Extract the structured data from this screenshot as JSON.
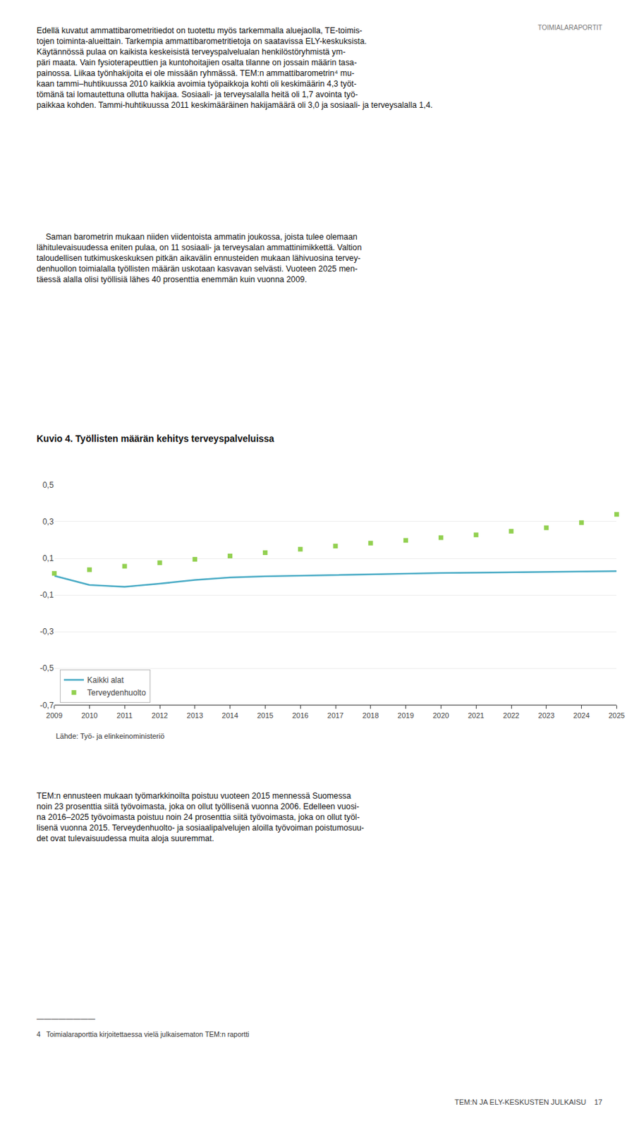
{
  "chart_data": {
    "type": "line",
    "title": "Kuvio 4. Työllisten määrän kehitys terveyspalveluissa",
    "x": [
      2009,
      2010,
      2011,
      2012,
      2013,
      2014,
      2015,
      2016,
      2017,
      2018,
      2019,
      2020,
      2021,
      2022,
      2023,
      2024,
      2025
    ],
    "xlim": [
      2009,
      2025
    ],
    "xticks": [
      2009,
      2010,
      2011,
      2012,
      2013,
      2014,
      2015,
      2016,
      2017,
      2018,
      2019,
      2020,
      2021,
      2022,
      2023,
      2024,
      2025
    ],
    "ylim": [
      -0.7,
      0.5
    ],
    "yticks": [
      {
        "value": -0.7,
        "label": "-0,7"
      },
      {
        "value": -0.5,
        "label": "-0,5"
      },
      {
        "value": -0.3,
        "label": "-0,3"
      },
      {
        "value": -0.1,
        "label": "-0,1"
      },
      {
        "value": 0.1,
        "label": "0,1"
      },
      {
        "value": 0.3,
        "label": "0,3"
      },
      {
        "value": 0.5,
        "label": "0,5"
      }
    ],
    "grid": true,
    "legend": "lower left",
    "series": [
      {
        "name": "Kaikki alat",
        "color": "#4BACC6",
        "line_style": "solid",
        "values": [
          0.005,
          -0.045,
          -0.055,
          -0.038,
          -0.018,
          -0.004,
          0.002,
          0.006,
          0.01,
          0.014,
          0.017,
          0.02,
          0.022,
          0.024,
          0.026,
          0.028,
          0.03
        ]
      },
      {
        "name": "Terveydenhuolto",
        "color": "#92D050",
        "line_style": "none",
        "marker": "square",
        "values": [
          0.018,
          0.038,
          0.057,
          0.076,
          0.095,
          0.113,
          0.131,
          0.15,
          0.167,
          0.183,
          0.198,
          0.213,
          0.228,
          0.248,
          0.267,
          0.295,
          0.34
        ]
      }
    ],
    "annotations": [
      "Lähde: Työ- ja elinkeinoministeriö",
      "Edellä kuvatut ammattibarometritiedot on tuotettu myös tarkemmalla aluejaolla, TE-toimis-\ntojen toiminta-alueittain. Tarkempia ammattibarometritietoja on saatavissa ELY-keskuksista.\nKäytännössä pulaa on kaikista keskeisistä terveyspalvelualan henkilöstöryhmistä ym-\npäri maata. Vain fysioterapeuttien ja kuntohoitajien osalta tilanne on jossain määrin tasa-\npainossa. Liikaa työnhakijoita ei ole missään ryhmässä. TEM:n ammattibarometrin⁴ mu-\nkaan tammi–huhtikuussa 2010 kaikkia avoimia työpaikkoja kohti oli keskimäärin 4,3 työt-\ntömänä tai lomautettuna ollutta hakijaa. Sosiaali- ja terveysalalla heitä oli 1,7 avointa työ-\npaikkaa kohden. Tammi-huhtikuussa 2011 keskimääräinen hakijamäärä oli 3,0 ja sosiaali- ja terveysalalla 1,4.",
      "    Saman barometrin mukaan niiden viidentoista ammatin joukossa, joista tulee olemaan\nlähitulevaisuudessa eniten pulaa, on 11 sosiaali- ja terveysalan ammattinimikkettä. Valtion\ntaloudellisen tutkimuskeskuksen pitkän aikavälin ennusteiden mukaan lähivuosina tervey-\ndenhuollon toimialalla työllisten määrän uskotaan kasvavan selvästi. Vuoteen 2025 men-\ntäessä alalla olisi työllisiä lähes 40 prosenttia enemmän kuin vuonna 2009.",
      "TEM:n ennusteen mukaan työmarkkinoilta poistuu vuoteen 2015 mennessä Suomessa\nnoin 23 prosenttia siitä työvoimasta, joka on ollut työllisenä vuonna 2006. Edelleen vuosi-\nna 2016–2025 työvoimasta poistuu noin 24 prosenttia siitä työvoimasta, joka on ollut työl-\nlisenä vuonna 2015. Terveydenhuolto- ja sosiaalipalvelujen aloilla työvoiman poistumosuu-\ndet ovat tulevaisuudessa muita aloja suuremmat.",
      "————————",
      "4   Toimialaraporttia kirjoitettaessa vielä julkaisematon TEM:n raportti",
      "TEM:N JA ELY-KESKUSTEN JULKAISU    17",
      "TOIMIALARAPORTIT"
    ]
  }
}
